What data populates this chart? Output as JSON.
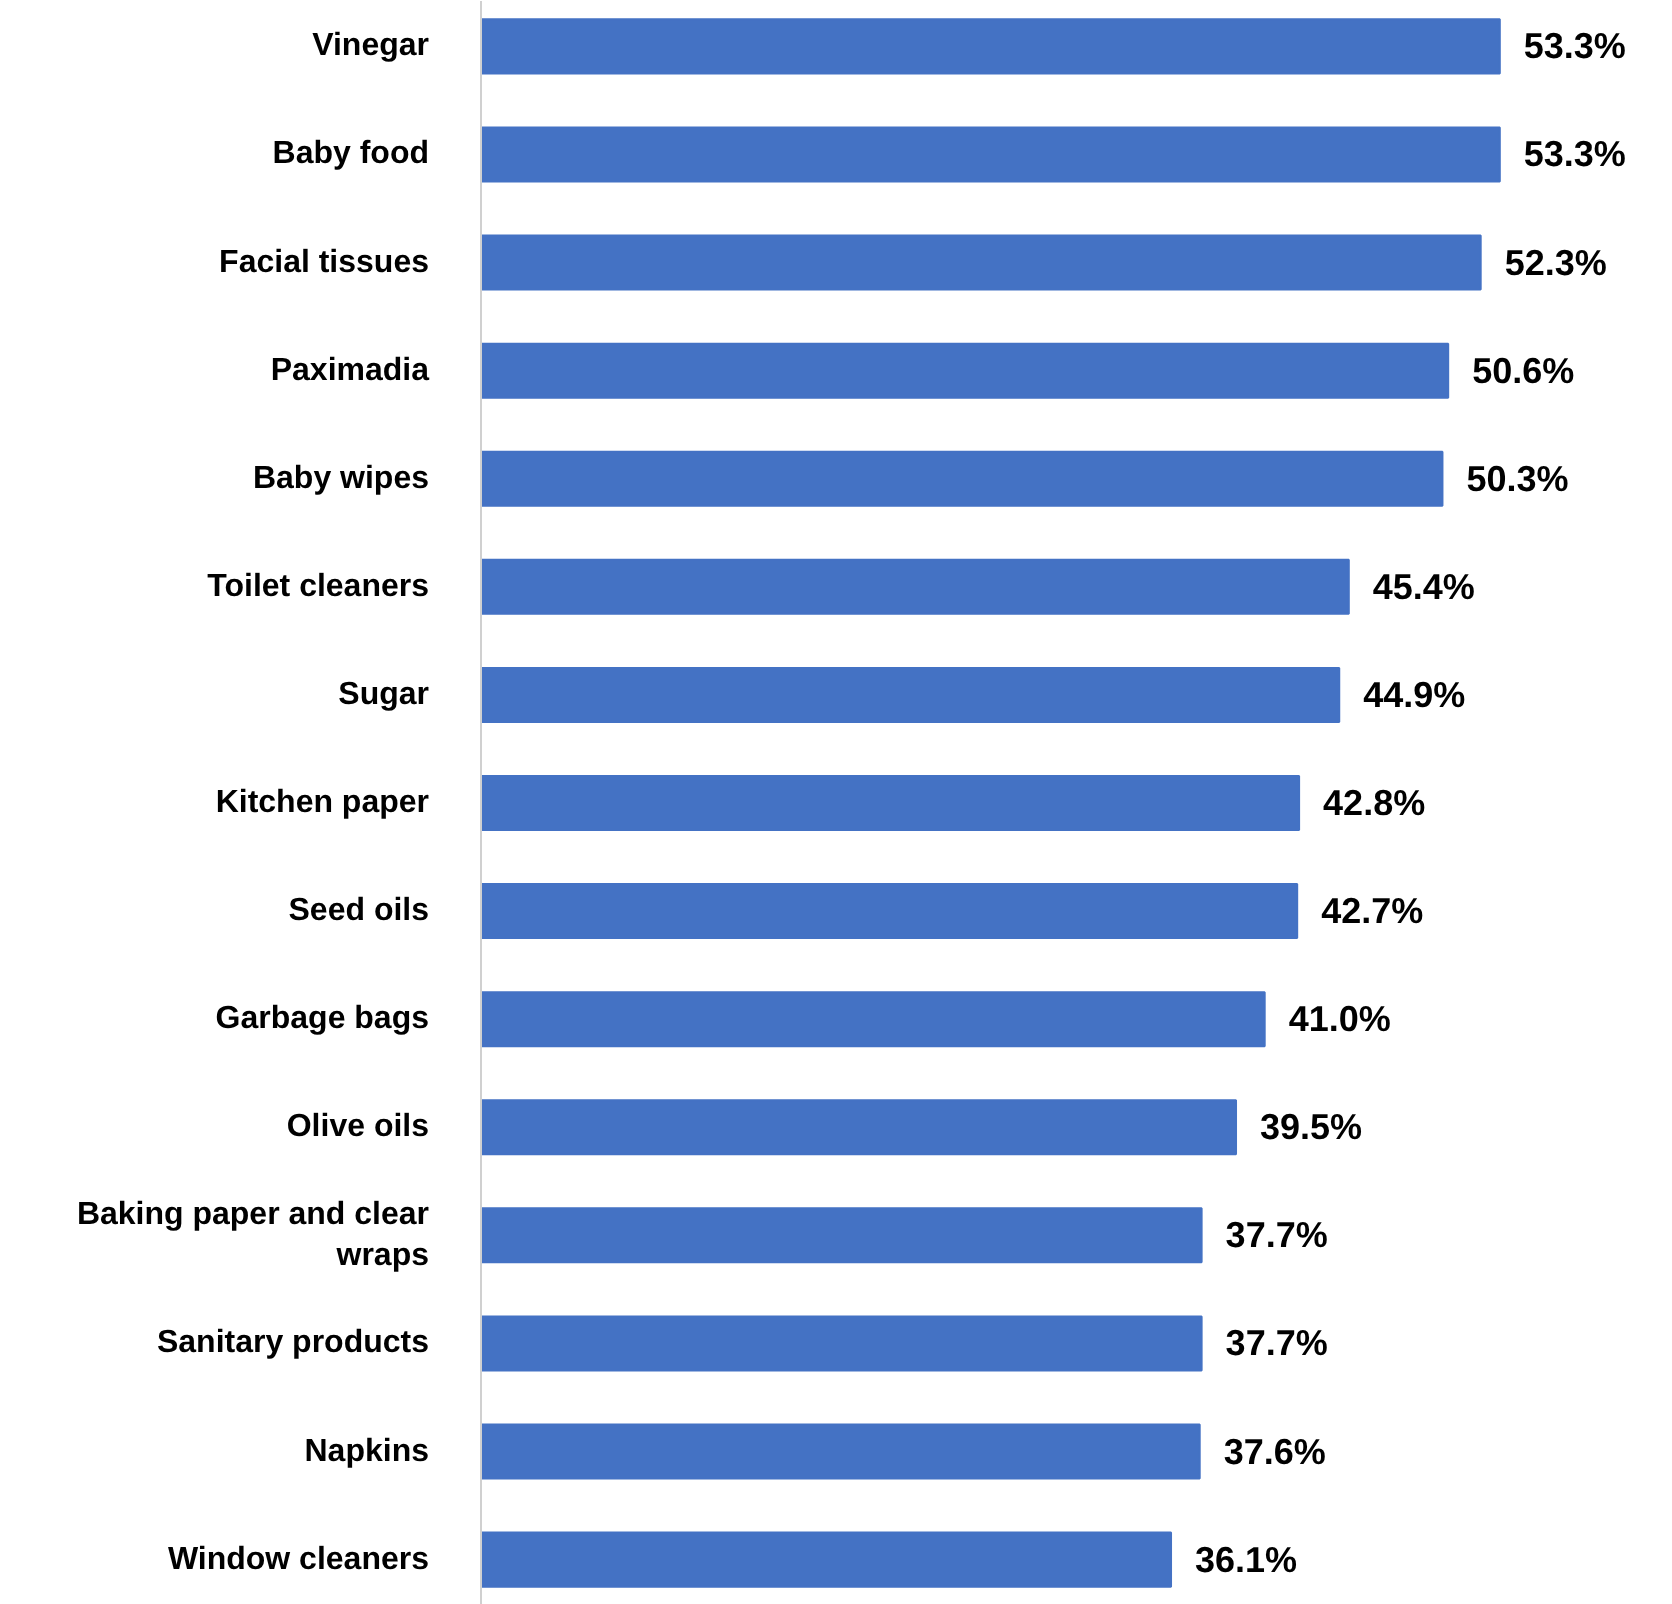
{
  "chart_data": {
    "type": "bar",
    "orientation": "horizontal",
    "data_labels": true,
    "grid": false,
    "categories": [
      "Vinegar",
      "Baby food",
      "Facial tissues",
      "Paximadia",
      "Baby wipes",
      "Toilet cleaners",
      "Sugar",
      "Kitchen paper",
      "Seed oils",
      "Garbage bags",
      "Olive oils",
      "Baking paper and clear wraps",
      "Sanitary products",
      "Napkins",
      "Window cleaners"
    ],
    "values": [
      53.3,
      53.3,
      52.3,
      50.6,
      50.3,
      45.4,
      44.9,
      42.8,
      42.7,
      41.0,
      39.5,
      37.7,
      37.7,
      37.6,
      36.1
    ],
    "value_labels": [
      "53.3%",
      "53.3%",
      "52.3%",
      "50.6%",
      "50.3%",
      "45.4%",
      "44.9%",
      "42.8%",
      "42.7%",
      "41.0%",
      "39.5%",
      "37.7%",
      "37.7%",
      "37.6%",
      "36.1%"
    ],
    "color": "#4472c4"
  }
}
